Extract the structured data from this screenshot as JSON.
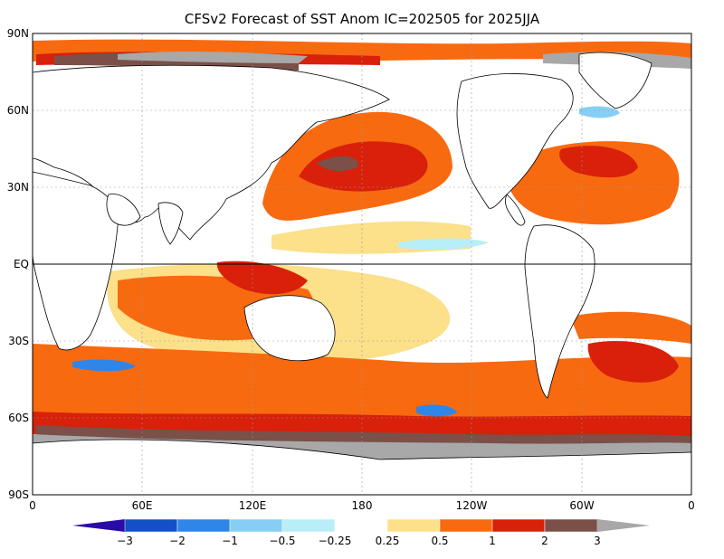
{
  "title": "CFSv2 Forecast of SST Anom IC=202505 for 2025JJA",
  "axes": {
    "lat_labels": [
      "90N",
      "60N",
      "30N",
      "EQ",
      "30S",
      "60S",
      "90S"
    ],
    "lon_labels": [
      "0",
      "60E",
      "120E",
      "180",
      "120W",
      "60W",
      "0"
    ]
  },
  "colorbar": {
    "tick_labels": [
      "−3",
      "−2",
      "−1",
      "−0.5",
      "−0.25",
      "0.25",
      "0.5",
      "1",
      "2",
      "3"
    ],
    "colors": [
      "#2a0aa8",
      "#1250c8",
      "#2f86e8",
      "#86cff4",
      "#b8eef8",
      "#ffffff",
      "#fce08a",
      "#f86a10",
      "#d8200a",
      "#7a5048",
      "#a8a8a8"
    ]
  },
  "colors": {
    "land": "#ffffff",
    "ice": "#a8a8a8",
    "background": "#ffffff"
  }
}
